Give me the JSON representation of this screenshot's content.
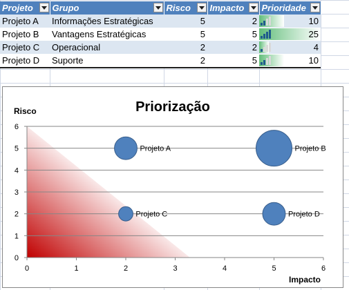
{
  "sheet": {
    "headers": [
      "Projeto",
      "Grupo",
      "Risco",
      "Impacto",
      "Prioridade"
    ],
    "rows": [
      {
        "projeto": "Projeto A",
        "grupo": "Informações Estratégicas",
        "risco": "5",
        "impacto": "2",
        "prioridade": "10",
        "level": 0.4,
        "bars": 2
      },
      {
        "projeto": "Projeto B",
        "grupo": "Vantagens Estratégicas",
        "risco": "5",
        "impacto": "5",
        "prioridade": "25",
        "level": 1.0,
        "bars": 4
      },
      {
        "projeto": "Projeto C",
        "grupo": "Operacional",
        "risco": "2",
        "impacto": "2",
        "prioridade": "4",
        "level": 0.16,
        "bars": 1
      },
      {
        "projeto": "Projeto D",
        "grupo": "Suporte",
        "risco": "2",
        "impacto": "5",
        "prioridade": "10",
        "level": 0.4,
        "bars": 2
      }
    ]
  },
  "chart_data": {
    "type": "scatter",
    "title": "Priorização",
    "xlabel": "Impacto",
    "ylabel": "Risco",
    "xlim": [
      0,
      6
    ],
    "ylim": [
      0,
      6
    ],
    "xticks": [
      "0",
      "1",
      "2",
      "3",
      "4",
      "5",
      "6"
    ],
    "yticks": [
      "0",
      "1",
      "2",
      "3",
      "4",
      "5",
      "6"
    ],
    "grid": "horizontal",
    "points": [
      {
        "label": "Projeto A",
        "x": 2,
        "y": 5,
        "size": 10
      },
      {
        "label": "Projeto B",
        "x": 5,
        "y": 5,
        "size": 25
      },
      {
        "label": "Projeto C",
        "x": 2,
        "y": 2,
        "size": 4
      },
      {
        "label": "Projeto D",
        "x": 5,
        "y": 2,
        "size": 10
      }
    ],
    "bubble_color": "#4f81bd",
    "zone_color": "#c00000"
  }
}
